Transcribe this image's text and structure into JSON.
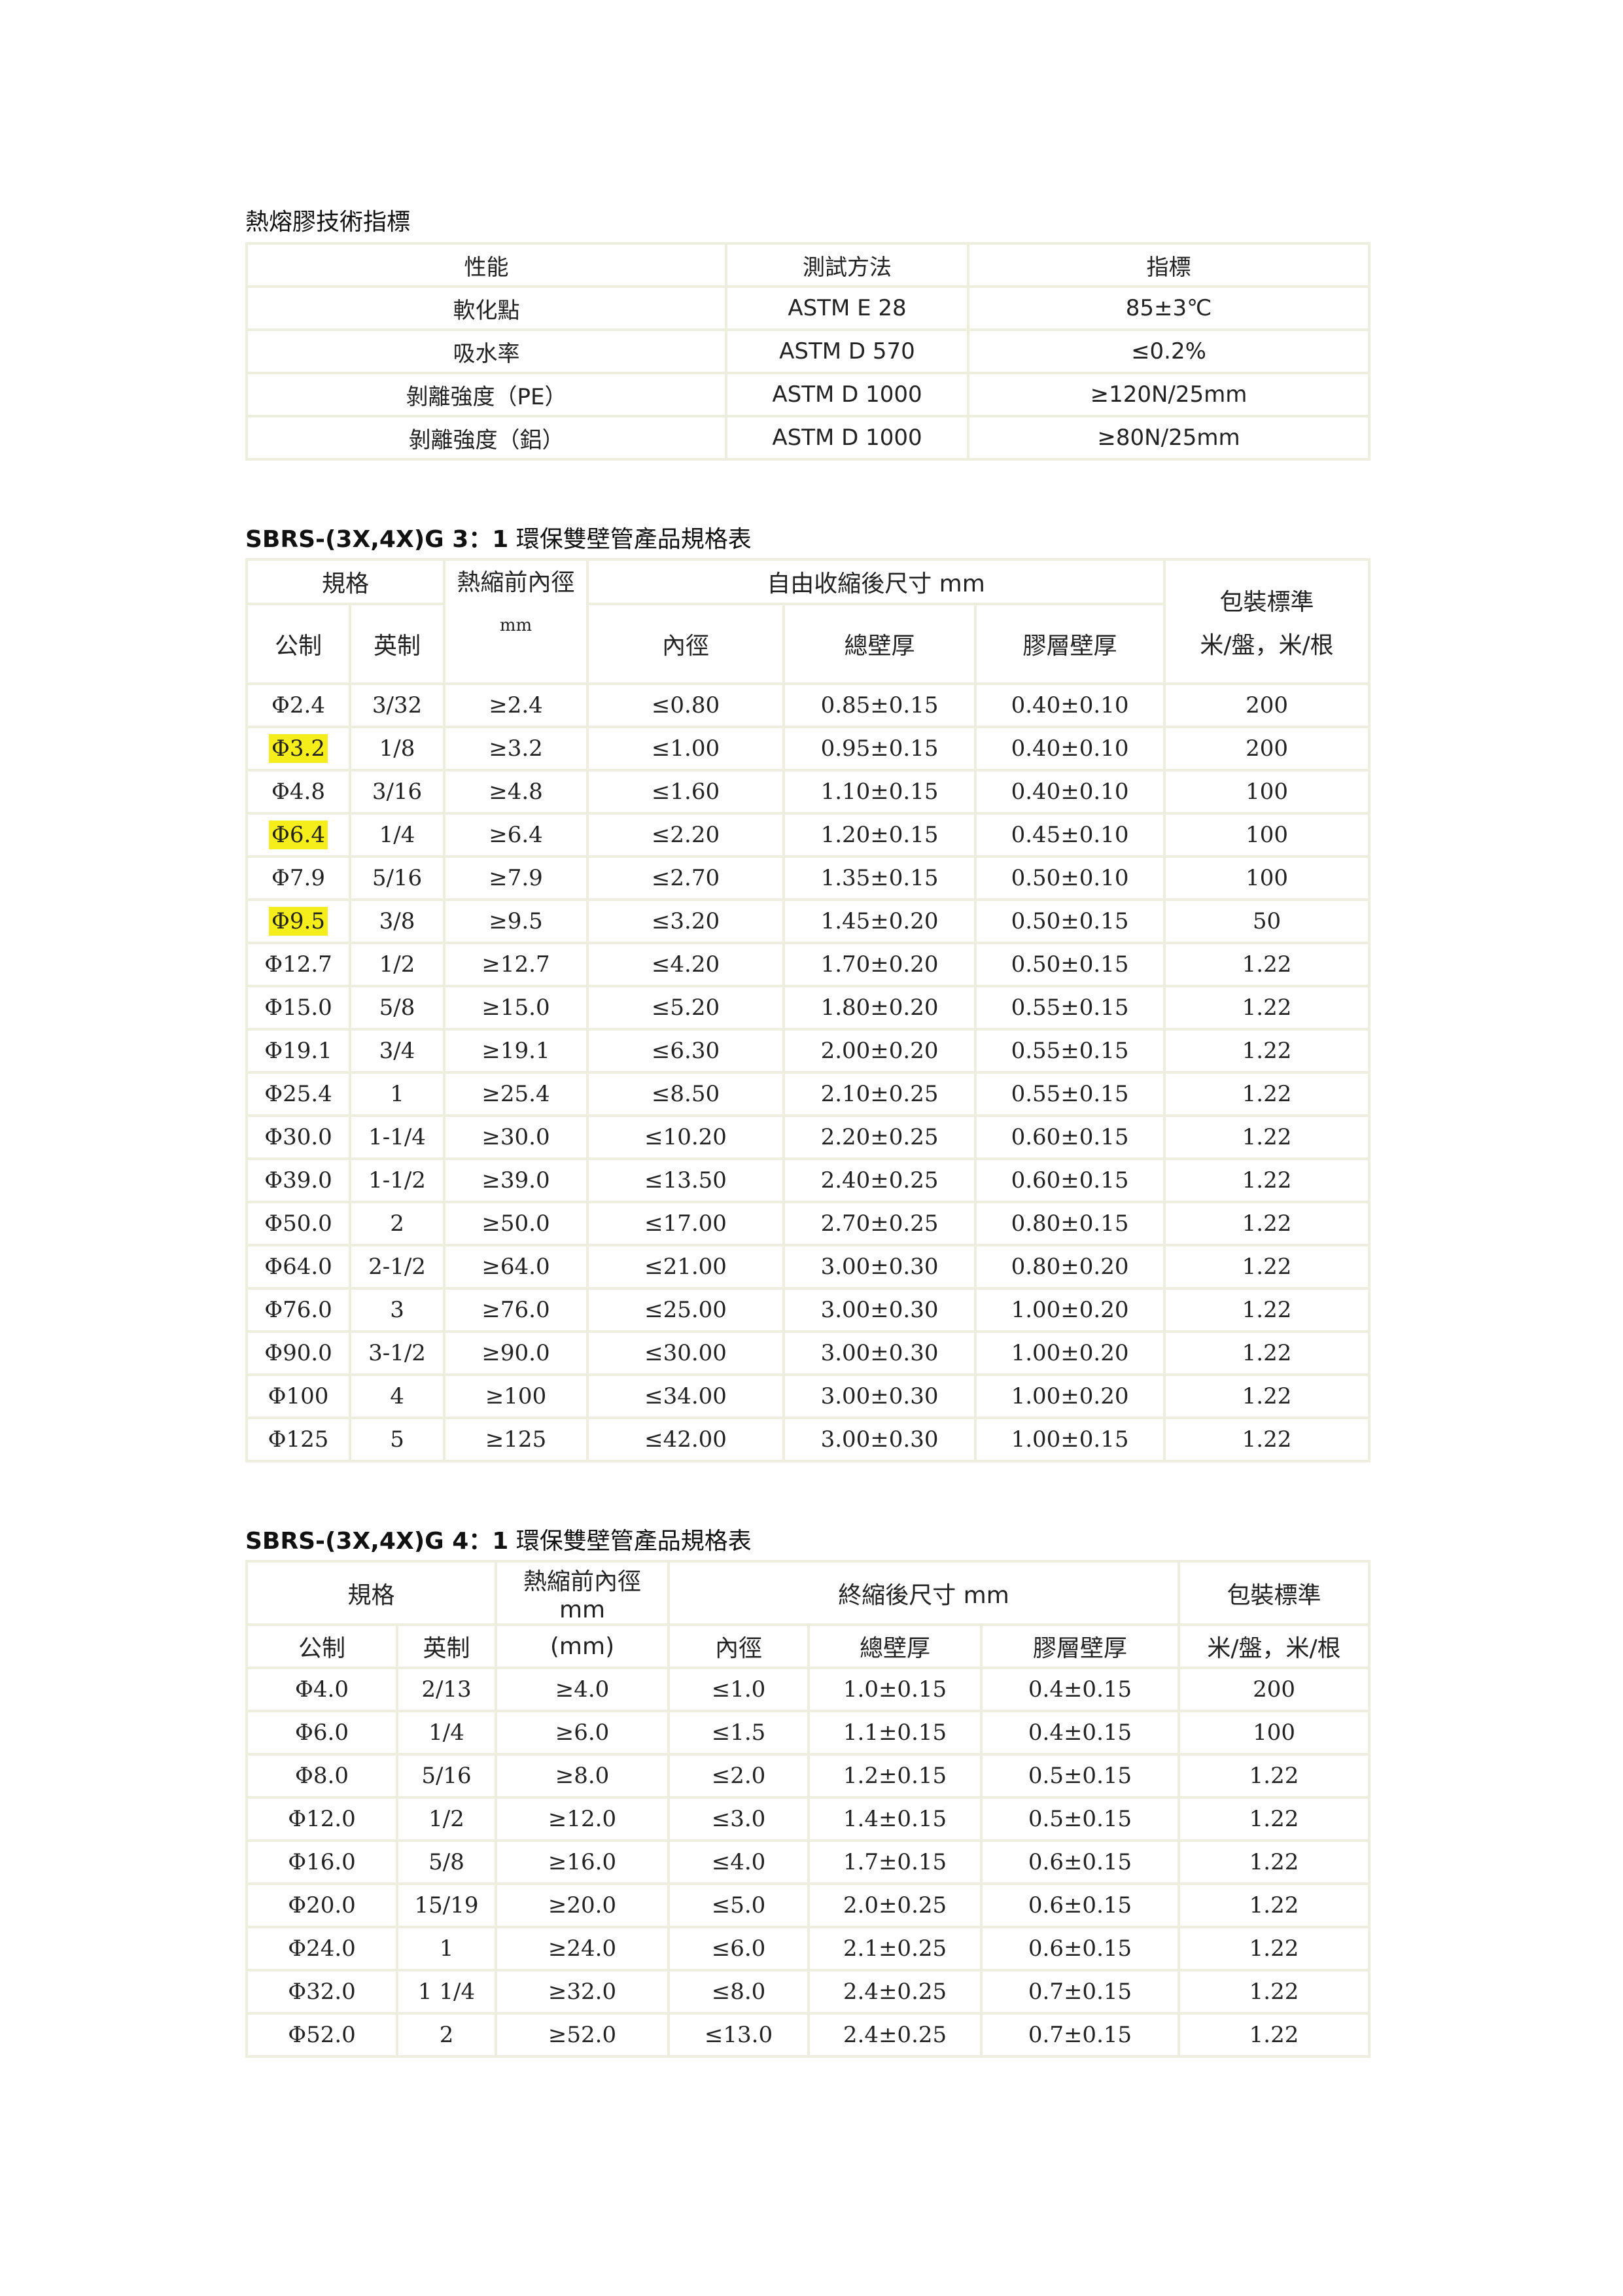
{
  "section1": {
    "title": "熱熔膠技術指標",
    "headers": [
      "性能",
      "測試方法",
      "指標"
    ],
    "rows": [
      [
        "軟化點",
        "ASTM E   28",
        "85±3℃"
      ],
      [
        "吸水率",
        "ASTM D   570",
        "≤0.2%"
      ],
      [
        "剝離強度（PE）",
        "ASTM D  1000",
        "≥120N/25mm"
      ],
      [
        "剝離強度（鋁）",
        "ASTM D  1000",
        "≥80N/25mm"
      ]
    ]
  },
  "section2": {
    "title_prefix": "SBRS-(3X,4X)G 3：1",
    "title_suffix": "環保雙壁管產品規格表",
    "h_spec": "規格",
    "h_pre": "熱縮前內徑",
    "h_pre_unit": "mm",
    "h_after": "自由收縮後尺寸 mm",
    "h_pack": "包裝標準",
    "h_pack_unit": "米/盤，米/根",
    "h_metric": "公制",
    "h_imperial": "英制",
    "h_id": "內徑",
    "h_wall": "總壁厚",
    "h_glue": "膠層壁厚",
    "highlight_color": "#f5ee1a",
    "rows": [
      {
        "c": [
          "Φ2.4",
          "3/32",
          "≥2.4",
          "≤0.80",
          "0.85±0.15",
          "0.40±0.10",
          "200"
        ]
      },
      {
        "c": [
          "Φ3.2",
          "1/8",
          "≥3.2",
          "≤1.00",
          "0.95±0.15",
          "0.40±0.10",
          "200"
        ],
        "highlight": true
      },
      {
        "c": [
          "Φ4.8",
          "3/16",
          "≥4.8",
          "≤1.60",
          "1.10±0.15",
          "0.40±0.10",
          "100"
        ]
      },
      {
        "c": [
          "Φ6.4",
          "1/4",
          "≥6.4",
          "≤2.20",
          "1.20±0.15",
          "0.45±0.10",
          "100"
        ],
        "highlight": true
      },
      {
        "c": [
          "Φ7.9",
          "5/16",
          "≥7.9",
          "≤2.70",
          "1.35±0.15",
          "0.50±0.10",
          "100"
        ]
      },
      {
        "c": [
          "Φ9.5",
          "3/8",
          "≥9.5",
          "≤3.20",
          "1.45±0.20",
          "0.50±0.15",
          "50"
        ],
        "highlight": true
      },
      {
        "c": [
          "Φ12.7",
          "1/2",
          "≥12.7",
          "≤4.20",
          "1.70±0.20",
          "0.50±0.15",
          "1.22"
        ]
      },
      {
        "c": [
          "Φ15.0",
          "5/8",
          "≥15.0",
          "≤5.20",
          "1.80±0.20",
          "0.55±0.15",
          "1.22"
        ]
      },
      {
        "c": [
          "Φ19.1",
          "3/4",
          "≥19.1",
          "≤6.30",
          "2.00±0.20",
          "0.55±0.15",
          "1.22"
        ]
      },
      {
        "c": [
          "Φ25.4",
          "1",
          "≥25.4",
          "≤8.50",
          "2.10±0.25",
          "0.55±0.15",
          "1.22"
        ]
      },
      {
        "c": [
          "Φ30.0",
          "1-1/4",
          "≥30.0",
          "≤10.20",
          "2.20±0.25",
          "0.60±0.15",
          "1.22"
        ]
      },
      {
        "c": [
          "Φ39.0",
          "1-1/2",
          "≥39.0",
          "≤13.50",
          "2.40±0.25",
          "0.60±0.15",
          "1.22"
        ]
      },
      {
        "c": [
          "Φ50.0",
          "2",
          "≥50.0",
          "≤17.00",
          "2.70±0.25",
          "0.80±0.15",
          "1.22"
        ]
      },
      {
        "c": [
          "Φ64.0",
          "2-1/2",
          "≥64.0",
          "≤21.00",
          "3.00±0.30",
          "0.80±0.20",
          "1.22"
        ]
      },
      {
        "c": [
          "Φ76.0",
          "3",
          "≥76.0",
          "≤25.00",
          "3.00±0.30",
          "1.00±0.20",
          "1.22"
        ]
      },
      {
        "c": [
          "Φ90.0",
          "3-1/2",
          "≥90.0",
          "≤30.00",
          "3.00±0.30",
          "1.00±0.20",
          "1.22"
        ]
      },
      {
        "c": [
          "Φ100",
          "4",
          "≥100",
          "≤34.00",
          "3.00±0.30",
          "1.00±0.20",
          "1.22"
        ]
      },
      {
        "c": [
          "Φ125",
          "5",
          "≥125",
          "≤42.00",
          "3.00±0.30",
          "1.00±0.15",
          "1.22"
        ]
      }
    ]
  },
  "section3": {
    "title_prefix": "SBRS-(3X,4X)G 4：1",
    "title_suffix": "環保雙壁管產品規格表",
    "h_spec": "規格",
    "h_pre": "熱縮前內徑 mm",
    "h_pre_unit": "(mm)",
    "h_after": "終縮後尺寸 mm",
    "h_pack": "包裝標準",
    "h_pack_unit": "米/盤，米/根",
    "h_metric": "公制",
    "h_imperial": "英制",
    "h_id": "內徑",
    "h_wall": "總壁厚",
    "h_glue": "膠層壁厚",
    "rows": [
      [
        "Φ4.0",
        "2/13",
        "≥4.0",
        "≤1.0",
        "1.0±0.15",
        "0.4±0.15",
        "200"
      ],
      [
        "Φ6.0",
        "1/4",
        "≥6.0",
        "≤1.5",
        "1.1±0.15",
        "0.4±0.15",
        "100"
      ],
      [
        "Φ8.0",
        "5/16",
        "≥8.0",
        "≤2.0",
        "1.2±0.15",
        "0.5±0.15",
        "1.22"
      ],
      [
        "Φ12.0",
        "1/2",
        "≥12.0",
        "≤3.0",
        "1.4±0.15",
        "0.5±0.15",
        "1.22"
      ],
      [
        "Φ16.0",
        "5/8",
        "≥16.0",
        "≤4.0",
        "1.7±0.15",
        "0.6±0.15",
        "1.22"
      ],
      [
        "Φ20.0",
        "15/19",
        "≥20.0",
        "≤5.0",
        "2.0±0.25",
        "0.6±0.15",
        "1.22"
      ],
      [
        "Φ24.0",
        "1",
        "≥24.0",
        "≤6.0",
        "2.1±0.25",
        "0.6±0.15",
        "1.22"
      ],
      [
        "Φ32.0",
        "1 1/4",
        "≥32.0",
        "≤8.0",
        "2.4±0.25",
        "0.7±0.15",
        "1.22"
      ],
      [
        "Φ52.0",
        "2",
        "≥52.0",
        "≤13.0",
        "2.4±0.25",
        "0.7±0.15",
        "1.22"
      ]
    ]
  }
}
